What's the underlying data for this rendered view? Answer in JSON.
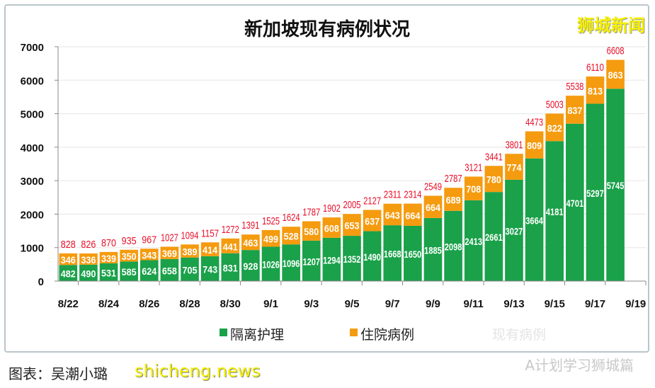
{
  "chart_data": {
    "type": "bar",
    "stacked": true,
    "title": "新加坡现有病例状况",
    "categories": [
      "8/22",
      "8/23",
      "8/24",
      "8/25",
      "8/26",
      "8/27",
      "8/28",
      "8/29",
      "8/30",
      "8/31",
      "9/1",
      "9/2",
      "9/3",
      "9/4",
      "9/5",
      "9/6",
      "9/7",
      "9/8",
      "9/9",
      "9/10",
      "9/11",
      "9/12",
      "9/13",
      "9/14",
      "9/15",
      "9/16",
      "9/17",
      "9/18"
    ],
    "xtick_labels": [
      "8/22",
      "8/24",
      "8/26",
      "8/28",
      "8/30",
      "9/1",
      "9/3",
      "9/5",
      "9/7",
      "9/9",
      "9/11",
      "9/13",
      "9/15",
      "9/17",
      "9/19"
    ],
    "series": [
      {
        "name": "隔离护理",
        "color": "#1aa14a",
        "values": [
          482,
          490,
          531,
          585,
          624,
          658,
          705,
          743,
          831,
          928,
          1026,
          1096,
          1207,
          1294,
          1352,
          1490,
          1668,
          1650,
          1885,
          2098,
          2413,
          2661,
          3027,
          3664,
          4181,
          4701,
          5297,
          5745
        ]
      },
      {
        "name": "住院病例",
        "color": "#f59b0f",
        "values": [
          346,
          336,
          339,
          350,
          343,
          369,
          389,
          414,
          441,
          463,
          499,
          528,
          580,
          608,
          653,
          637,
          643,
          664,
          664,
          689,
          708,
          780,
          774,
          809,
          822,
          837,
          813,
          863
        ]
      }
    ],
    "totals_series_name": "现有病例",
    "totals": [
      828,
      826,
      870,
      935,
      967,
      1027,
      1094,
      1157,
      1272,
      1391,
      1525,
      1624,
      1787,
      1902,
      2005,
      2127,
      2311,
      2314,
      2549,
      2787,
      3121,
      3441,
      3801,
      4473,
      5003,
      5538,
      6110,
      6608
    ],
    "totals_color": "#e8102a",
    "yticks": [
      "0",
      "1000",
      "2000",
      "3000",
      "4000",
      "5000",
      "6000",
      "7000"
    ],
    "ylim": [
      0,
      7000
    ],
    "grid": true,
    "legend": "bottom"
  },
  "logo_text": "狮城新闻",
  "watermark_account": "A计划学习狮城篇",
  "watermark_site": "shicheng.news",
  "credit": "图表：吴潮小璐"
}
